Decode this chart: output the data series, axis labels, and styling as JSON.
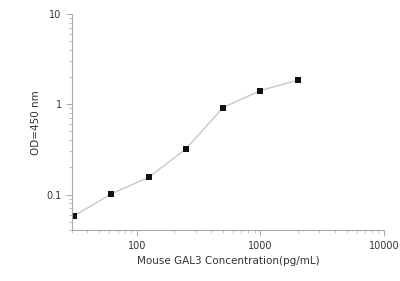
{
  "x": [
    31.25,
    62.5,
    125,
    250,
    500,
    1000,
    2000
  ],
  "y": [
    0.058,
    0.102,
    0.155,
    0.32,
    0.92,
    1.42,
    1.85
  ],
  "xlim": [
    30,
    10000
  ],
  "ylim": [
    0.04,
    10
  ],
  "xlabel": "Mouse GAL3 Concentration(pg/mL)",
  "ylabel": "OD=450 nm",
  "line_color": "#c8c8c8",
  "marker_color": "#111111",
  "background_color": "#ffffff",
  "xticks": [
    100,
    1000,
    10000
  ],
  "yticks": [
    0.1,
    1,
    10
  ],
  "tick_labelsize": 7,
  "xlabel_fontsize": 7.5,
  "ylabel_fontsize": 7.5,
  "spine_color": "#aaaaaa"
}
